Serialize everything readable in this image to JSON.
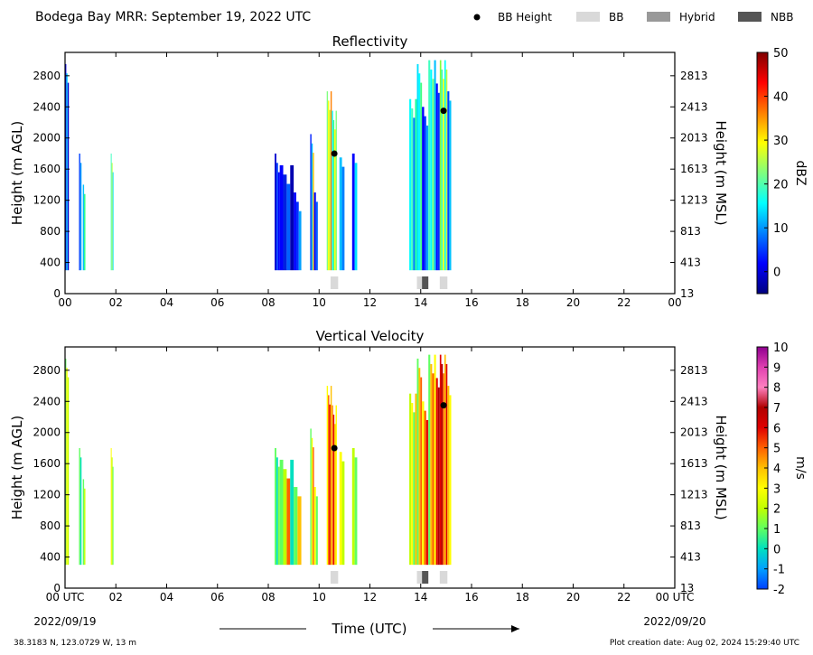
{
  "header": {
    "title": "Bodega Bay MRR:  September 19, 2022 UTC",
    "legend": [
      {
        "label": "BB Height",
        "symbol": "dot",
        "color": "#000000"
      },
      {
        "label": "BB",
        "symbol": "box",
        "color": "#d9d9d9"
      },
      {
        "label": "Hybrid",
        "symbol": "box",
        "color": "#999999"
      },
      {
        "label": "NBB",
        "symbol": "box",
        "color": "#555555"
      }
    ]
  },
  "footer": {
    "location": "38.3183 N, 123.0729 W, 13 m",
    "creation": "Plot creation date: Aug 02, 2024 15:29:40 UTC",
    "start_date": "2022/09/19",
    "end_date": "2022/09/20",
    "xlabel": "Time (UTC)"
  },
  "chart_data": [
    {
      "type": "heatmap",
      "title": "Reflectivity",
      "ylabel": "Height (m AGL)",
      "y2label": "Height (m MSL)",
      "xlim": [
        0,
        24
      ],
      "ylim": [
        0,
        3100
      ],
      "x_ticks": [
        "00",
        "02",
        "04",
        "06",
        "08",
        "10",
        "12",
        "14",
        "16",
        "18",
        "20",
        "22",
        "00"
      ],
      "y_ticks": [
        0,
        400,
        800,
        1200,
        1600,
        2000,
        2400,
        2800
      ],
      "y2_ticks": [
        "13",
        "413",
        "813",
        "1213",
        "1613",
        "2013",
        "2413",
        "2813"
      ],
      "colorbar": {
        "label": "dBZ",
        "range": [
          -5,
          50
        ],
        "ticks": [
          0,
          10,
          20,
          30,
          40,
          50
        ],
        "colors": [
          "#00007f",
          "#0000ff",
          "#007fff",
          "#00ffff",
          "#7fff7f",
          "#ffff00",
          "#ff7f00",
          "#ff0000",
          "#7f0000"
        ]
      },
      "bb_height_points": [
        {
          "time": 10.6,
          "height": 1800
        },
        {
          "time": 14.9,
          "height": 2350
        }
      ],
      "bb_classification": [
        {
          "start": 10.45,
          "end": 10.75,
          "class": "BB"
        },
        {
          "start": 13.85,
          "end": 14.05,
          "class": "BB"
        },
        {
          "start": 14.05,
          "end": 14.3,
          "class": "NBB"
        },
        {
          "start": 14.75,
          "end": 15.05,
          "class": "BB"
        }
      ],
      "echo_columns": [
        {
          "start": 0.0,
          "end": 0.15,
          "top": 2950,
          "colors": [
            "#0000ff",
            "#00d0ff",
            "#0000cc"
          ]
        },
        {
          "start": 0.55,
          "end": 0.65,
          "top": 1800,
          "colors": [
            "#0040ff",
            "#00a0ff"
          ]
        },
        {
          "start": 0.7,
          "end": 0.8,
          "top": 1400,
          "colors": [
            "#00c0ff",
            "#20ff80"
          ]
        },
        {
          "start": 1.8,
          "end": 1.9,
          "top": 1800,
          "colors": [
            "#40ffc0",
            "#c0ff40",
            "#00e0ff"
          ]
        },
        {
          "start": 8.25,
          "end": 8.45,
          "top": 1800,
          "colors": [
            "#0000d0",
            "#0040ff",
            "#0000ff"
          ]
        },
        {
          "start": 8.45,
          "end": 9.0,
          "top": 1650,
          "colors": [
            "#0000ff",
            "#0020e0",
            "#0060ff",
            "#0000b0"
          ]
        },
        {
          "start": 9.0,
          "end": 9.3,
          "top": 1300,
          "colors": [
            "#0000ff",
            "#0030ff",
            "#00a0ff"
          ]
        },
        {
          "start": 9.65,
          "end": 9.8,
          "top": 2050,
          "colors": [
            "#0020ff",
            "#00c0ff",
            "#ffc000"
          ]
        },
        {
          "start": 9.8,
          "end": 9.95,
          "top": 1300,
          "colors": [
            "#0000ff",
            "#0060ff"
          ]
        },
        {
          "start": 10.3,
          "end": 10.5,
          "top": 2600,
          "colors": [
            "#80ff80",
            "#ffff00",
            "#c0ff40",
            "#ff8000"
          ]
        },
        {
          "start": 10.5,
          "end": 10.7,
          "top": 2350,
          "colors": [
            "#00ffff",
            "#40ff80",
            "#ffff00",
            "#80ff80"
          ]
        },
        {
          "start": 10.8,
          "end": 11.0,
          "top": 1750,
          "colors": [
            "#00c0ff",
            "#0080ff"
          ]
        },
        {
          "start": 11.3,
          "end": 11.5,
          "top": 1800,
          "colors": [
            "#0000ff",
            "#00e0ff"
          ]
        },
        {
          "start": 13.55,
          "end": 13.85,
          "top": 2500,
          "colors": [
            "#00ffff",
            "#40ffc0",
            "#0080ff",
            "#20ffa0"
          ]
        },
        {
          "start": 13.85,
          "end": 14.05,
          "top": 2950,
          "colors": [
            "#00e0ff",
            "#00ffff",
            "#40ff80"
          ]
        },
        {
          "start": 14.05,
          "end": 14.3,
          "top": 2400,
          "colors": [
            "#0000ff",
            "#0040ff",
            "#00a0ff"
          ]
        },
        {
          "start": 14.3,
          "end": 14.6,
          "top": 3000,
          "colors": [
            "#40ffc0",
            "#00ffff",
            "#80ff80",
            "#00c0ff"
          ]
        },
        {
          "start": 14.6,
          "end": 14.75,
          "top": 2700,
          "colors": [
            "#0000ff",
            "#0030ff"
          ]
        },
        {
          "start": 14.75,
          "end": 15.05,
          "top": 3000,
          "colors": [
            "#80ff40",
            "#40ffc0",
            "#ffff00",
            "#00ffff",
            "#c0ff40"
          ]
        },
        {
          "start": 15.05,
          "end": 15.2,
          "top": 2600,
          "colors": [
            "#0040ff",
            "#00c0ff"
          ]
        }
      ]
    },
    {
      "type": "heatmap",
      "title": "Vertical Velocity",
      "ylabel": "Height (m AGL)",
      "y2label": "Height (m MSL)",
      "xlim": [
        0,
        24
      ],
      "ylim": [
        0,
        3100
      ],
      "x_ticks": [
        "00 UTC",
        "02",
        "04",
        "06",
        "08",
        "10",
        "12",
        "14",
        "16",
        "18",
        "20",
        "22",
        "00 UTC"
      ],
      "y_ticks": [
        0,
        400,
        800,
        1200,
        1600,
        2000,
        2400,
        2800
      ],
      "y2_ticks": [
        "13",
        "413",
        "813",
        "1213",
        "1613",
        "2013",
        "2413",
        "2813"
      ],
      "colorbar": {
        "label": "m/s",
        "range": [
          -2,
          10
        ],
        "ticks": [
          -2,
          -1,
          0,
          1,
          2,
          3,
          4,
          5,
          6,
          7,
          8,
          9,
          10
        ],
        "colors": [
          "#0040ff",
          "#00a0ff",
          "#00e0c0",
          "#60ff60",
          "#c0ff00",
          "#ffff00",
          "#ffc000",
          "#ff6000",
          "#e00000",
          "#b00000",
          "#ff80c0",
          "#e040b0",
          "#900090"
        ]
      },
      "bb_height_points": [
        {
          "time": 10.6,
          "height": 1800
        },
        {
          "time": 14.9,
          "height": 2350
        }
      ],
      "bb_classification": [
        {
          "start": 10.45,
          "end": 10.75,
          "class": "BB"
        },
        {
          "start": 13.85,
          "end": 14.05,
          "class": "BB"
        },
        {
          "start": 14.05,
          "end": 14.3,
          "class": "NBB"
        },
        {
          "start": 14.75,
          "end": 15.05,
          "class": "BB"
        }
      ],
      "echo_columns": [
        {
          "start": 0.0,
          "end": 0.15,
          "top": 2950,
          "colors": [
            "#60ff60",
            "#ffff00",
            "#c0ff00"
          ]
        },
        {
          "start": 0.55,
          "end": 0.65,
          "top": 1800,
          "colors": [
            "#60ff60",
            "#00e0c0"
          ]
        },
        {
          "start": 0.7,
          "end": 0.8,
          "top": 1400,
          "colors": [
            "#60ff60",
            "#c0ff00"
          ]
        },
        {
          "start": 1.8,
          "end": 1.9,
          "top": 1800,
          "colors": [
            "#ffff00",
            "#c0ff00",
            "#60ff60"
          ]
        },
        {
          "start": 8.25,
          "end": 8.45,
          "top": 1800,
          "colors": [
            "#60ff60",
            "#00e0c0",
            "#80ff40"
          ]
        },
        {
          "start": 8.45,
          "end": 9.0,
          "top": 1650,
          "colors": [
            "#60ff60",
            "#c0ff00",
            "#ff6000",
            "#00e0c0"
          ]
        },
        {
          "start": 9.0,
          "end": 9.3,
          "top": 1300,
          "colors": [
            "#60ff60",
            "#ffc000"
          ]
        },
        {
          "start": 9.65,
          "end": 9.8,
          "top": 2050,
          "colors": [
            "#60ff60",
            "#ffff00",
            "#ff6000"
          ]
        },
        {
          "start": 9.8,
          "end": 9.95,
          "top": 1300,
          "colors": [
            "#ffff00",
            "#60ff60"
          ]
        },
        {
          "start": 10.3,
          "end": 10.5,
          "top": 2600,
          "colors": [
            "#ffff00",
            "#ff6000",
            "#e00000",
            "#ffc000"
          ]
        },
        {
          "start": 10.5,
          "end": 10.7,
          "top": 2350,
          "colors": [
            "#ff8000",
            "#e00000",
            "#ffc000",
            "#ffff00"
          ]
        },
        {
          "start": 10.8,
          "end": 11.0,
          "top": 1750,
          "colors": [
            "#ffff00",
            "#c0ff00"
          ]
        },
        {
          "start": 11.3,
          "end": 11.5,
          "top": 1800,
          "colors": [
            "#c0ff00",
            "#60ff60"
          ]
        },
        {
          "start": 13.55,
          "end": 13.85,
          "top": 2500,
          "colors": [
            "#c0ff00",
            "#ffff00",
            "#60ff60",
            "#ffc000"
          ]
        },
        {
          "start": 13.85,
          "end": 14.05,
          "top": 2950,
          "colors": [
            "#60ff60",
            "#ffc000",
            "#ff6000"
          ]
        },
        {
          "start": 14.05,
          "end": 14.3,
          "top": 2400,
          "colors": [
            "#ffff00",
            "#ff6000",
            "#e00000"
          ]
        },
        {
          "start": 14.3,
          "end": 14.6,
          "top": 3000,
          "colors": [
            "#60ff60",
            "#ffc000",
            "#ff6000",
            "#ffff00"
          ]
        },
        {
          "start": 14.6,
          "end": 14.75,
          "top": 2700,
          "colors": [
            "#e00000",
            "#b00000"
          ]
        },
        {
          "start": 14.75,
          "end": 15.05,
          "top": 3000,
          "colors": [
            "#e00000",
            "#b00000",
            "#ff6000",
            "#ffc000",
            "#e00000"
          ]
        },
        {
          "start": 15.05,
          "end": 15.2,
          "top": 2600,
          "colors": [
            "#ffc000",
            "#ffff00"
          ]
        }
      ]
    }
  ]
}
